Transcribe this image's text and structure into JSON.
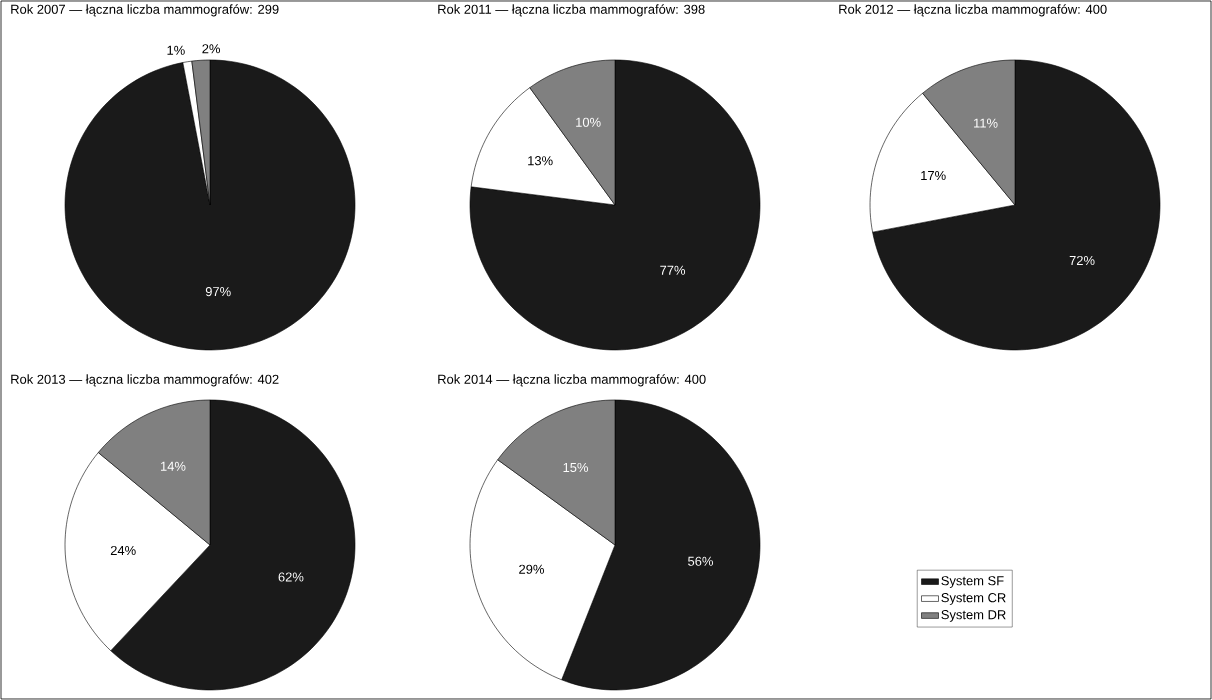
{
  "chart_data": [
    {
      "type": "pie",
      "title": "Rok 2007 — łączna liczba mammografów: 299",
      "categories": [
        null,
        null,
        null
      ],
      "values": [
        97,
        1,
        2
      ],
      "value_labels": [
        "97%",
        "1%",
        "2%"
      ],
      "colors": [
        "#1a1a1a",
        "#ffffff",
        "#808080"
      ]
    },
    {
      "type": "pie",
      "title": "Rok 2011 — łączna liczba mammografów: 398",
      "categories": [
        null,
        null,
        null
      ],
      "values": [
        77,
        13,
        10
      ],
      "value_labels": [
        "77%",
        "13%",
        "10%"
      ],
      "colors": [
        "#1a1a1a",
        "#ffffff",
        "#808080"
      ]
    },
    {
      "type": "pie",
      "title": "Rok 2012 — łączna liczba mammografów: 400",
      "categories": [
        null,
        null,
        null
      ],
      "values": [
        72,
        17,
        11
      ],
      "value_labels": [
        "72%",
        "17%",
        "11%"
      ],
      "colors": [
        "#1a1a1a",
        "#ffffff",
        "#808080"
      ]
    },
    {
      "type": "pie",
      "title": "Rok 2013 — łączna liczba mammografów: 402",
      "categories": [
        null,
        null,
        null
      ],
      "values": [
        62,
        24,
        14
      ],
      "value_labels": [
        "62%",
        "24%",
        "14%"
      ],
      "colors": [
        "#1a1a1a",
        "#ffffff",
        "#808080"
      ]
    },
    {
      "type": "pie",
      "title": "Rok 2014 — łączna liczba mammografów: 400",
      "categories": [
        "System SF",
        "System CR",
        "System DR"
      ],
      "values": [
        56,
        29,
        15
      ],
      "value_labels": [
        "56%",
        "29%",
        "15%"
      ],
      "colors": [
        "#1a1a1a",
        "#ffffff",
        "#808080"
      ],
      "legend": "right"
    }
  ]
}
